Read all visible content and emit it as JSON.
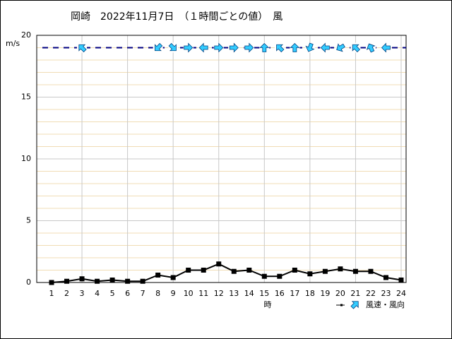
{
  "chart_data": {
    "type": "line",
    "title": "岡崎　2022年11月7日　（１時間ごとの値）　風",
    "y_unit": "m/s",
    "x_label": "時",
    "categories": [
      "1",
      "2",
      "3",
      "4",
      "5",
      "6",
      "7",
      "8",
      "9",
      "10",
      "11",
      "12",
      "13",
      "14",
      "15",
      "16",
      "17",
      "18",
      "19",
      "20",
      "21",
      "22",
      "23",
      "24"
    ],
    "series": [
      {
        "name": "風速・風向",
        "color": "#000000",
        "arrow_color": "#33ccff",
        "values": [
          0.0,
          0.1,
          0.3,
          0.1,
          0.2,
          0.1,
          0.1,
          0.6,
          0.4,
          1.0,
          1.0,
          1.5,
          0.9,
          1.0,
          0.5,
          0.5,
          1.0,
          0.7,
          0.9,
          1.1,
          0.9,
          0.9,
          0.4,
          0.2
        ],
        "directions": [
          null,
          null,
          315,
          null,
          null,
          null,
          null,
          225,
          135,
          90,
          270,
          90,
          90,
          90,
          0,
          315,
          0,
          200,
          270,
          240,
          315,
          335,
          270,
          null
        ]
      }
    ],
    "arrow_level": 19,
    "ylim": [
      0,
      20
    ],
    "yticks": [
      0,
      5,
      10,
      15,
      20
    ],
    "yminor": [
      1,
      2,
      3,
      4,
      6,
      7,
      8,
      9,
      11,
      12,
      13,
      14,
      16,
      17,
      18,
      19
    ],
    "grid": true
  }
}
